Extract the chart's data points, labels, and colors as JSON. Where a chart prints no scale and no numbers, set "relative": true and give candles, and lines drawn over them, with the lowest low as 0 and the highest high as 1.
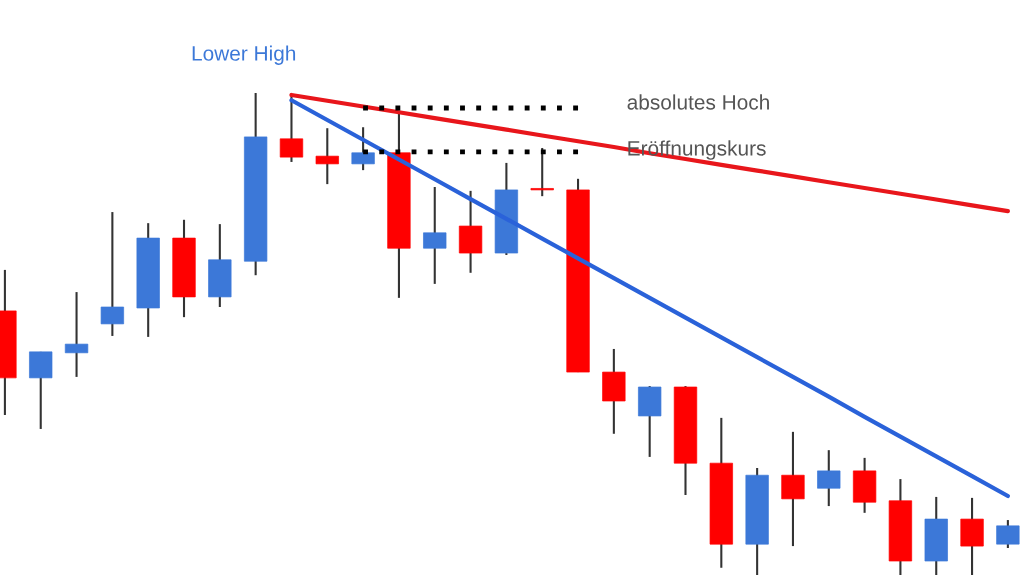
{
  "chart_data": {
    "type": "candlestick",
    "relative": true,
    "categories": [
      null,
      null,
      null,
      null,
      null,
      null,
      null,
      null,
      null,
      null,
      null,
      null,
      null,
      null,
      null,
      null,
      null,
      null,
      null,
      null,
      null,
      null,
      null,
      null,
      null,
      null,
      null,
      null,
      null
    ],
    "ohlc": [
      [
        0.548,
        0.633,
        0.332,
        0.409
      ],
      [
        0.409,
        0.463,
        0.303,
        0.463
      ],
      [
        0.461,
        0.587,
        0.411,
        0.479
      ],
      [
        0.521,
        0.753,
        0.496,
        0.556
      ],
      [
        0.554,
        0.73,
        0.494,
        0.699
      ],
      [
        0.699,
        0.737,
        0.535,
        0.577
      ],
      [
        0.577,
        0.728,
        0.556,
        0.654
      ],
      [
        0.651,
        1.0,
        0.622,
        0.909
      ],
      [
        0.905,
        0.996,
        0.857,
        0.867
      ],
      [
        0.869,
        0.927,
        0.811,
        0.853
      ],
      [
        0.853,
        0.929,
        0.84,
        0.876
      ],
      [
        0.876,
        0.961,
        0.575,
        0.678
      ],
      [
        0.678,
        0.805,
        0.604,
        0.71
      ],
      [
        0.724,
        0.797,
        0.627,
        0.668
      ],
      [
        0.668,
        0.855,
        0.664,
        0.799
      ],
      [
        0.801,
        0.886,
        0.786,
        0.799
      ],
      [
        0.799,
        0.822,
        0.421,
        0.421
      ],
      [
        0.421,
        0.469,
        0.293,
        0.361
      ],
      [
        0.33,
        0.392,
        0.245,
        0.39
      ],
      [
        0.39,
        0.392,
        0.166,
        0.232
      ],
      [
        0.232,
        0.326,
        0.015,
        0.064
      ],
      [
        0.064,
        0.222,
        0.0,
        0.207
      ],
      [
        0.207,
        0.297,
        0.06,
        0.158
      ],
      [
        0.18,
        0.259,
        0.143,
        0.216
      ],
      [
        0.216,
        0.243,
        0.129,
        0.151
      ],
      [
        0.154,
        0.199,
        0.0,
        0.029
      ],
      [
        0.029,
        0.162,
        0.0,
        0.116
      ],
      [
        0.116,
        0.16,
        0.0,
        0.06
      ],
      [
        0.064,
        0.114,
        0.056,
        0.102
      ]
    ],
    "colors": [
      "#ff0000",
      "#3c78d8",
      "#3c78d8",
      "#3c78d8",
      "#3c78d8",
      "#ff0000",
      "#3c78d8",
      "#3c78d8",
      "#ff0000",
      "#ff0000",
      "#3c78d8",
      "#ff0000",
      "#3c78d8",
      "#ff0000",
      "#3c78d8",
      "#ff0000",
      "#ff0000",
      "#ff0000",
      "#3c78d8",
      "#ff0000",
      "#ff0000",
      "#3c78d8",
      "#ff0000",
      "#3c78d8",
      "#ff0000",
      "#ff0000",
      "#3c78d8",
      "#ff0000",
      "#3c78d8"
    ],
    "series": [
      {
        "type": "line",
        "values": [
          null,
          null,
          null,
          null,
          null,
          null,
          null,
          null,
          0.996,
          0.984,
          0.972,
          0.96,
          0.948,
          0.936,
          0.924,
          0.912,
          0.9,
          0.888,
          0.875,
          0.863,
          0.851,
          0.839,
          0.827,
          0.815,
          0.803,
          0.791,
          0.779,
          0.767,
          0.755
        ],
        "color": "#e8161b",
        "line_style": "solid"
      },
      {
        "type": "line",
        "values": [
          null,
          null,
          null,
          null,
          null,
          null,
          null,
          null,
          0.985,
          0.944,
          0.903,
          0.862,
          0.821,
          0.78,
          0.739,
          0.698,
          0.657,
          0.616,
          0.575,
          0.534,
          0.493,
          0.452,
          0.411,
          0.37,
          0.328,
          0.287,
          0.246,
          0.205,
          0.164
        ],
        "color": "#2a62d9",
        "line_style": "solid"
      },
      {
        "type": "line",
        "values": [
          null,
          null,
          null,
          null,
          null,
          null,
          null,
          null,
          null,
          null,
          0.969,
          0.969,
          0.969,
          0.969,
          0.969,
          0.969,
          0.969,
          null,
          null,
          null,
          null,
          null,
          null,
          null,
          null,
          null,
          null,
          null,
          null
        ],
        "color": "#000000",
        "line_style": "dotted"
      },
      {
        "type": "line",
        "values": [
          null,
          null,
          null,
          null,
          null,
          null,
          null,
          null,
          null,
          null,
          0.878,
          0.878,
          0.878,
          0.878,
          0.878,
          0.878,
          0.878,
          null,
          null,
          null,
          null,
          null,
          null,
          null,
          null,
          null,
          null,
          null,
          null
        ],
        "color": "#000000",
        "line_style": "dotted"
      }
    ],
    "annotations": [
      "Lower High",
      "absolutes Hoch",
      "Eröffnungskurs"
    ]
  }
}
